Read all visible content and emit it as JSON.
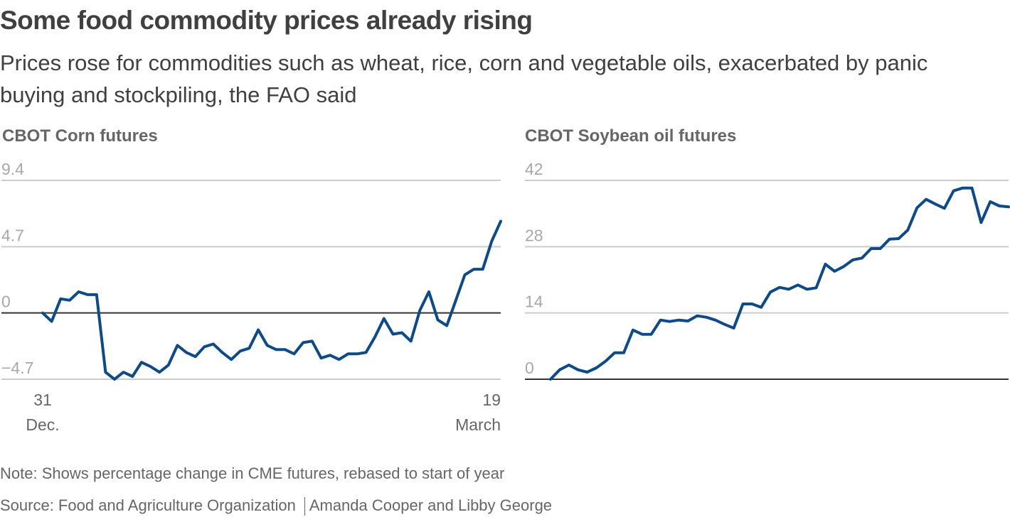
{
  "header": {
    "title": "Some food commodity prices already rising",
    "subtitle": "Prices rose for commodities such as wheat, rice, corn and vegetable oils, exacerbated by panic buying and stockpiling, the FAO said"
  },
  "colors": {
    "line": "#0b4a8c",
    "grid": "#cccccc",
    "baseline": "#333333"
  },
  "footer": {
    "note": "Note: Shows percentage change in CME futures, rebased to start of year",
    "source": "Source: Food and Agriculture Organization",
    "credit": "Amanda Cooper and Libby George"
  },
  "chart_data": [
    {
      "type": "line",
      "title": "CBOT Corn futures",
      "xlabel": "",
      "ylabel": "",
      "ylim": [
        -4.7,
        9.4
      ],
      "yticks": [
        9.4,
        4.7,
        0,
        -4.7
      ],
      "ytick_labels": [
        "9.4",
        "4.7",
        "0",
        "−4.7"
      ],
      "baseline": 0,
      "xticks": [
        {
          "pos": 0,
          "line1": "31",
          "line2": "Dec."
        },
        {
          "pos": 1,
          "line1": "19",
          "line2": "March"
        }
      ],
      "grid": true,
      "series": [
        {
          "name": "Corn",
          "values": [
            0.0,
            -0.6,
            1.0,
            0.9,
            1.5,
            1.3,
            1.3,
            -4.2,
            -4.7,
            -4.2,
            -4.5,
            -3.5,
            -3.8,
            -4.2,
            -3.7,
            -2.3,
            -2.8,
            -3.1,
            -2.4,
            -2.2,
            -2.8,
            -3.3,
            -2.7,
            -2.5,
            -1.2,
            -2.3,
            -2.6,
            -2.6,
            -2.9,
            -2.1,
            -2.0,
            -3.2,
            -3.0,
            -3.3,
            -2.9,
            -2.9,
            -2.8,
            -1.7,
            -0.4,
            -1.5,
            -1.4,
            -2.0,
            0.2,
            1.5,
            -0.5,
            -0.9,
            0.9,
            2.7,
            3.1,
            3.1,
            5.1,
            6.5
          ]
        }
      ]
    },
    {
      "type": "line",
      "title": "CBOT Soybean oil futures",
      "xlabel": "",
      "ylabel": "",
      "ylim": [
        0,
        42
      ],
      "yticks": [
        42,
        28,
        14,
        0
      ],
      "ytick_labels": [
        "42",
        "28",
        "14",
        "0"
      ],
      "baseline": 0,
      "grid": true,
      "series": [
        {
          "name": "Soybean oil",
          "values": [
            0.0,
            2.0,
            3.0,
            2.0,
            1.5,
            2.4,
            3.8,
            5.6,
            5.6,
            10.4,
            9.5,
            9.5,
            12.5,
            12.2,
            12.5,
            12.3,
            13.4,
            13.1,
            12.5,
            11.6,
            10.8,
            15.9,
            15.9,
            15.2,
            18.4,
            19.4,
            19.0,
            19.9,
            19.0,
            19.3,
            24.3,
            22.8,
            23.8,
            25.2,
            25.6,
            27.6,
            27.6,
            29.6,
            29.7,
            31.5,
            36.2,
            38.0,
            37.0,
            36.1,
            39.8,
            40.4,
            40.4,
            33.1,
            37.5,
            36.6,
            36.4
          ]
        }
      ]
    }
  ]
}
